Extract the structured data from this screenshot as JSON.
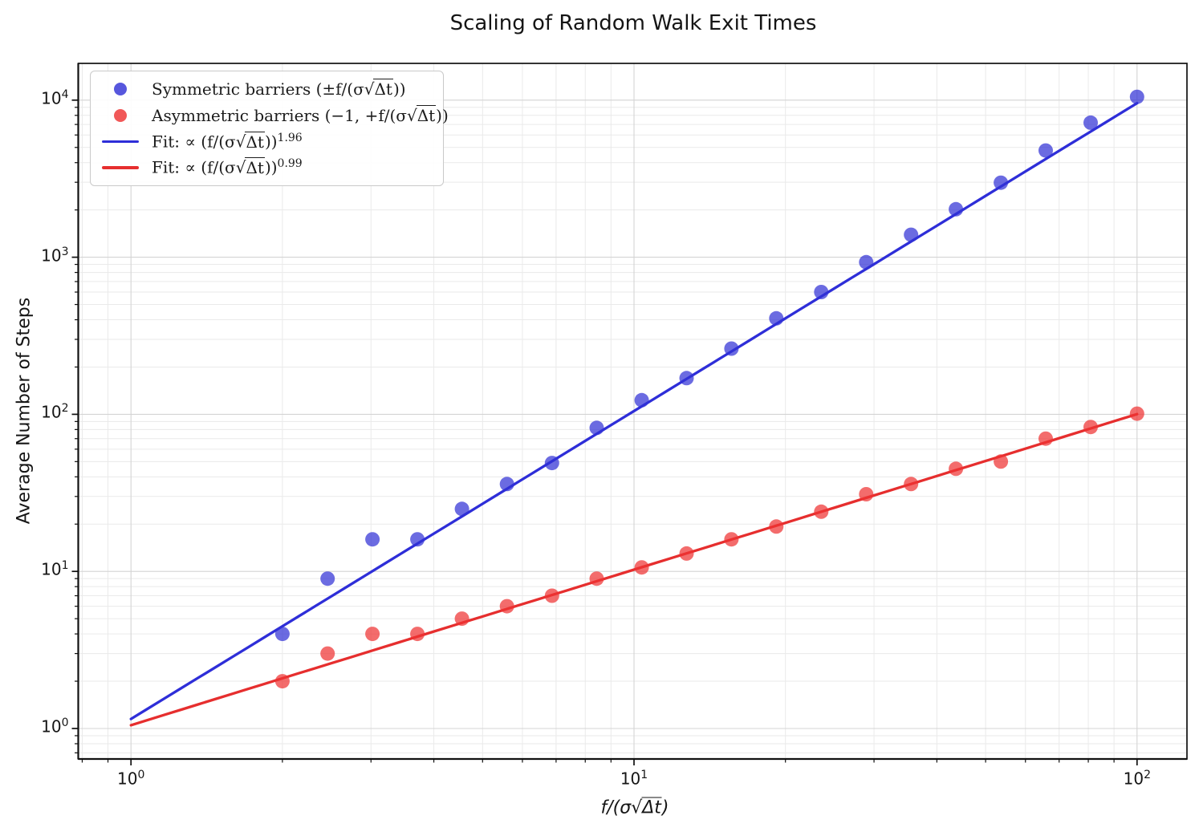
{
  "title": "Scaling of Random Walk Exit Times",
  "axes": {
    "ylabel": "Average Number of Steps",
    "xlabel": {
      "pre": "f/(σ√",
      "rad": "Δt",
      "post": ")"
    },
    "tick_base": "10",
    "x_ticks": [
      {
        "value": 1,
        "exp": "0"
      },
      {
        "value": 10,
        "exp": "1"
      },
      {
        "value": 100,
        "exp": "2"
      }
    ],
    "y_ticks": [
      {
        "value": 1,
        "exp": "0"
      },
      {
        "value": 10,
        "exp": "1"
      },
      {
        "value": 100,
        "exp": "2"
      },
      {
        "value": 1000,
        "exp": "3"
      },
      {
        "value": 10000,
        "exp": "4"
      }
    ]
  },
  "legend": {
    "items": [
      {
        "marker": "dot",
        "color": "#3232d6",
        "pre": "Symmetric barriers (±f/(σ√",
        "rad": "Δt",
        "post": "))",
        "sup": ""
      },
      {
        "marker": "dot",
        "color": "#ee3333",
        "pre": "Asymmetric barriers (−1, +f/(σ√",
        "rad": "Δt",
        "post": "))",
        "sup": ""
      },
      {
        "marker": "line",
        "color": "#2e2ed8",
        "pre": "Fit: ∝ (f/(σ√",
        "rad": "Δt",
        "post": "))",
        "sup": "1.96"
      },
      {
        "marker": "line",
        "color": "#e62e2e",
        "pre": "Fit: ∝ (f/(σ√",
        "rad": "Δt",
        "post": "))",
        "sup": "0.99"
      }
    ]
  },
  "colors": {
    "blue_line": "#2e2ed8",
    "blue_dot": "#3232d6",
    "red_line": "#e62e2e",
    "red_dot": "#ee3333",
    "grid_major": "#d4d4d4",
    "grid_minor": "#eaeaea",
    "spine": "#111111",
    "text": "#151515"
  },
  "chart_data": {
    "type": "scatter",
    "title": "Scaling of Random Walk Exit Times",
    "xlabel": "f/(σ√Δt)",
    "ylabel": "Average Number of Steps",
    "xscale": "log",
    "yscale": "log",
    "xlim": [
      0.78,
      126
    ],
    "ylim": [
      0.64,
      17100
    ],
    "grid": true,
    "legend_position": "upper left",
    "x": [
      2.0,
      2.46,
      3.02,
      3.71,
      4.55,
      5.59,
      6.87,
      8.43,
      10.36,
      12.72,
      15.62,
      19.18,
      23.56,
      28.94,
      35.54,
      43.65,
      53.61,
      65.84,
      80.87,
      100.0
    ],
    "series": [
      {
        "name": "Symmetric barriers (±f/(σ√Δt))",
        "color": "#3232d6",
        "values": [
          4,
          9,
          16,
          16,
          25,
          36,
          49,
          82,
          123,
          170,
          262,
          408,
          600,
          930,
          1390,
          2020,
          2980,
          4780,
          7190,
          10500
        ]
      },
      {
        "name": "Asymmetric barriers (−1, +f/(σ√Δt))",
        "color": "#ee3333",
        "values": [
          2,
          3,
          4,
          4,
          5,
          6,
          7,
          9,
          10.6,
          13,
          16,
          19.3,
          24,
          31,
          36,
          45,
          50,
          70,
          83,
          101
        ]
      }
    ],
    "fits": [
      {
        "name": "Fit: ∝ (f/(σ√Δt))^1.96",
        "color": "#2e2ed8",
        "coefficient": 1.15,
        "exponent": 1.96,
        "x_range": [
          1,
          100
        ]
      },
      {
        "name": "Fit: ∝ (f/(σ√Δt))^0.99",
        "color": "#e62e2e",
        "coefficient": 1.05,
        "exponent": 0.99,
        "x_range": [
          1,
          100
        ]
      }
    ]
  }
}
